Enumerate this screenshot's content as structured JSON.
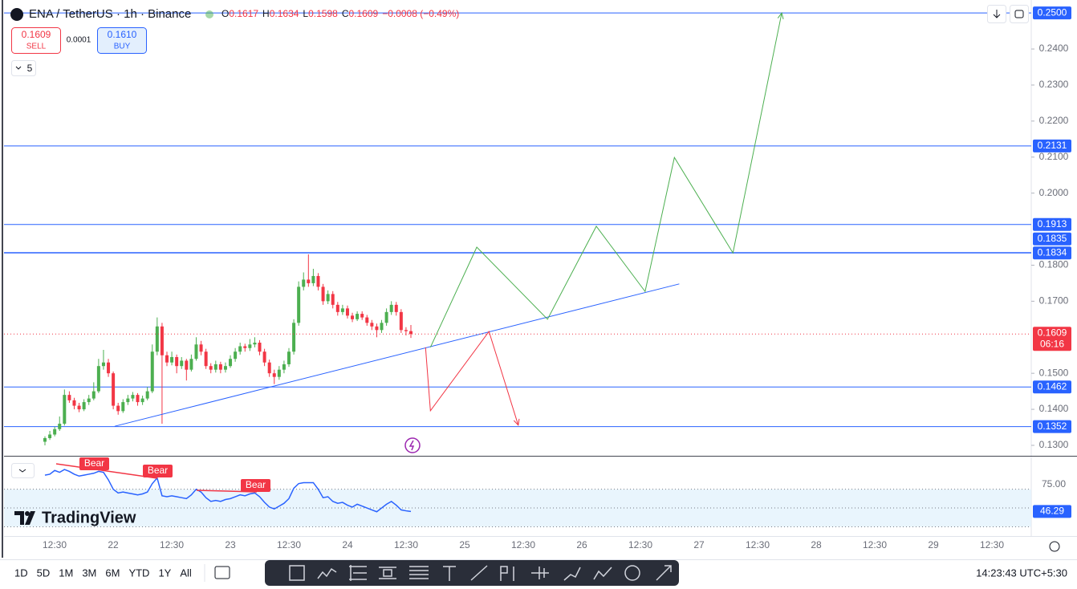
{
  "header": {
    "symbol": "ENA / TetherUS · 1h · Binance",
    "o_label": "O",
    "o": "0.1617",
    "h_label": "H",
    "h": "0.1634",
    "l_label": "L",
    "l": "0.1598",
    "c_label": "C",
    "c": "0.1609",
    "change": "−0.0008 (−0.49%)"
  },
  "trade": {
    "sell_price": "0.1609",
    "sell": "SELL",
    "spread": "0.0001",
    "buy_price": "0.1610",
    "buy": "BUY"
  },
  "indicator_count": "5",
  "watermark": "TradingView",
  "chart_data": {
    "type": "candlestick",
    "ylim": [
      0.1271,
      0.2536
    ],
    "yticks": [
      {
        "value": 0.24,
        "label": "0.2400"
      },
      {
        "value": 0.23,
        "label": "0.2300"
      },
      {
        "value": 0.22,
        "label": "0.2200"
      },
      {
        "value": 0.21,
        "label": "0.2100"
      },
      {
        "value": 0.2,
        "label": "0.2000"
      },
      {
        "value": 0.18,
        "label": "0.1800"
      },
      {
        "value": 0.17,
        "label": "0.1700"
      },
      {
        "value": 0.15,
        "label": "0.1500"
      },
      {
        "value": 0.14,
        "label": "0.1400"
      },
      {
        "value": 0.13,
        "label": "0.1300"
      }
    ],
    "x_labels": [
      "12:30",
      "22",
      "12:30",
      "23",
      "12:30",
      "24",
      "12:30",
      "25",
      "12:30",
      "26",
      "12:30",
      "27",
      "12:30",
      "28",
      "12:30",
      "29",
      "12:30"
    ],
    "up_color": "#4caf50",
    "down_color": "#f23645",
    "candles": [
      [
        0.131,
        0.1325,
        0.13,
        0.132
      ],
      [
        0.132,
        0.134,
        0.1315,
        0.133
      ],
      [
        0.133,
        0.1352,
        0.1325,
        0.1345
      ],
      [
        0.1345,
        0.138,
        0.134,
        0.136
      ],
      [
        0.136,
        0.1455,
        0.1355,
        0.144
      ],
      [
        0.144,
        0.145,
        0.1418,
        0.1425
      ],
      [
        0.1425,
        0.1432,
        0.14,
        0.141
      ],
      [
        0.141,
        0.1418,
        0.1392,
        0.14
      ],
      [
        0.14,
        0.1428,
        0.1395,
        0.142
      ],
      [
        0.142,
        0.144,
        0.1412,
        0.143
      ],
      [
        0.143,
        0.1475,
        0.1425,
        0.145
      ],
      [
        0.145,
        0.154,
        0.1445,
        0.152
      ],
      [
        0.152,
        0.1565,
        0.151,
        0.153
      ],
      [
        0.153,
        0.154,
        0.149,
        0.15
      ],
      [
        0.15,
        0.1505,
        0.14,
        0.141
      ],
      [
        0.141,
        0.1418,
        0.1385,
        0.1395
      ],
      [
        0.1395,
        0.1428,
        0.139,
        0.142
      ],
      [
        0.142,
        0.144,
        0.1412,
        0.143
      ],
      [
        0.143,
        0.1448,
        0.1422,
        0.144
      ],
      [
        0.144,
        0.1445,
        0.141,
        0.142
      ],
      [
        0.142,
        0.1438,
        0.1412,
        0.143
      ],
      [
        0.143,
        0.1462,
        0.1425,
        0.145
      ],
      [
        0.145,
        0.158,
        0.1445,
        0.156
      ],
      [
        0.156,
        0.1655,
        0.155,
        0.163
      ],
      [
        0.163,
        0.164,
        0.136,
        0.155
      ],
      [
        0.155,
        0.156,
        0.152,
        0.153
      ],
      [
        0.153,
        0.156,
        0.1522,
        0.1545
      ],
      [
        0.1545,
        0.1552,
        0.15,
        0.152
      ],
      [
        0.152,
        0.1545,
        0.1512,
        0.1535
      ],
      [
        0.1535,
        0.154,
        0.148,
        0.151
      ],
      [
        0.151,
        0.1552,
        0.1505,
        0.154
      ],
      [
        0.154,
        0.16,
        0.1535,
        0.158
      ],
      [
        0.158,
        0.159,
        0.155,
        0.156
      ],
      [
        0.156,
        0.1568,
        0.1512,
        0.152
      ],
      [
        0.152,
        0.1528,
        0.15,
        0.151
      ],
      [
        0.151,
        0.1535,
        0.1502,
        0.1525
      ],
      [
        0.1525,
        0.1532,
        0.15,
        0.151
      ],
      [
        0.151,
        0.153,
        0.1502,
        0.152
      ],
      [
        0.152,
        0.155,
        0.1515,
        0.154
      ],
      [
        0.154,
        0.157,
        0.1532,
        0.156
      ],
      [
        0.156,
        0.1585,
        0.1552,
        0.1575
      ],
      [
        0.1575,
        0.1582,
        0.156,
        0.157
      ],
      [
        0.157,
        0.1595,
        0.1562,
        0.158
      ],
      [
        0.158,
        0.16,
        0.1572,
        0.1585
      ],
      [
        0.1585,
        0.1592,
        0.155,
        0.156
      ],
      [
        0.156,
        0.1568,
        0.152,
        0.153
      ],
      [
        0.153,
        0.1538,
        0.149,
        0.15
      ],
      [
        0.15,
        0.151,
        0.147,
        0.149
      ],
      [
        0.149,
        0.152,
        0.1482,
        0.151
      ],
      [
        0.151,
        0.1535,
        0.15,
        0.1525
      ],
      [
        0.1525,
        0.157,
        0.1518,
        0.156
      ],
      [
        0.156,
        0.165,
        0.1552,
        0.164
      ],
      [
        0.164,
        0.1755,
        0.1632,
        0.174
      ],
      [
        0.174,
        0.178,
        0.173,
        0.176
      ],
      [
        0.176,
        0.183,
        0.174,
        0.175
      ],
      [
        0.175,
        0.179,
        0.1742,
        0.177
      ],
      [
        0.177,
        0.1778,
        0.173,
        0.174
      ],
      [
        0.174,
        0.1748,
        0.169,
        0.17
      ],
      [
        0.17,
        0.173,
        0.1692,
        0.172
      ],
      [
        0.172,
        0.1728,
        0.168,
        0.169
      ],
      [
        0.169,
        0.1698,
        0.166,
        0.167
      ],
      [
        0.167,
        0.169,
        0.1662,
        0.168
      ],
      [
        0.168,
        0.1688,
        0.1652,
        0.166
      ],
      [
        0.166,
        0.1668,
        0.1642,
        0.165
      ],
      [
        0.165,
        0.1672,
        0.1645,
        0.1665
      ],
      [
        0.1665,
        0.1672,
        0.1648,
        0.1655
      ],
      [
        0.1655,
        0.1662,
        0.1632,
        0.164
      ],
      [
        0.164,
        0.1648,
        0.162,
        0.163
      ],
      [
        0.163,
        0.1638,
        0.16,
        0.162
      ],
      [
        0.162,
        0.1648,
        0.1612,
        0.164
      ],
      [
        0.164,
        0.168,
        0.1632,
        0.167
      ],
      [
        0.167,
        0.17,
        0.1662,
        0.169
      ],
      [
        0.169,
        0.1698,
        0.166,
        0.167
      ],
      [
        0.167,
        0.1678,
        0.1612,
        0.162
      ],
      [
        0.162,
        0.1628,
        0.1605,
        0.1617
      ],
      [
        0.1617,
        0.1634,
        0.1598,
        0.1609
      ]
    ],
    "countdown": "06:16",
    "levels": [
      {
        "value": 0.25,
        "label": "0.2500"
      },
      0.2131,
      0.1913,
      0.1835,
      0.1834,
      0.1462,
      0.1352
    ],
    "level_color": "#2962ff",
    "trend_line": {
      "color": "#2962ff",
      "bars": [
        14.3,
        130
      ],
      "prices": [
        0.1353,
        0.1748
      ]
    },
    "projection_up": {
      "color": "#4caf50",
      "bars": [
        79,
        88.5,
        103,
        113,
        123,
        129,
        141,
        151
      ],
      "prices": [
        0.1572,
        0.185,
        0.165,
        0.1908,
        0.1727,
        0.2099,
        0.1834,
        0.25
      ]
    },
    "projection_down": {
      "color": "#f23645",
      "bars": [
        78,
        79,
        91,
        97
      ],
      "prices": [
        0.1572,
        0.1396,
        0.1616,
        0.1356
      ]
    }
  },
  "rsi": {
    "type": "line",
    "color": "#2962ff",
    "ylim": [
      22.7,
      103.9
    ],
    "yticks": [
      {
        "value": 75,
        "label": "75.00"
      }
    ],
    "levels": [
      70,
      50,
      30
    ],
    "values": [
      85,
      86,
      90,
      88,
      91,
      89,
      86,
      84,
      85,
      86,
      87,
      89,
      88,
      80,
      70,
      66,
      67,
      66,
      65,
      64,
      65,
      67,
      76,
      82,
      63,
      62,
      63,
      62,
      61,
      60,
      64,
      70,
      67,
      61,
      57,
      58,
      57,
      59,
      60,
      62,
      64,
      63,
      65,
      66,
      62,
      56,
      51,
      49,
      52,
      55,
      60,
      71,
      76,
      77,
      77,
      77,
      70,
      61,
      62,
      57,
      55,
      56,
      53,
      51,
      54,
      52,
      50,
      48,
      46,
      50,
      54,
      57,
      53,
      48,
      47,
      46.29
    ],
    "bear_labels": [
      "Bear",
      "Bear",
      "Bear"
    ]
  },
  "toolbar": {
    "ranges": [
      "1D",
      "5D",
      "1M",
      "3M",
      "6M",
      "YTD",
      "1Y",
      "All"
    ],
    "clock": "14:23:43 UTC+5:30"
  }
}
